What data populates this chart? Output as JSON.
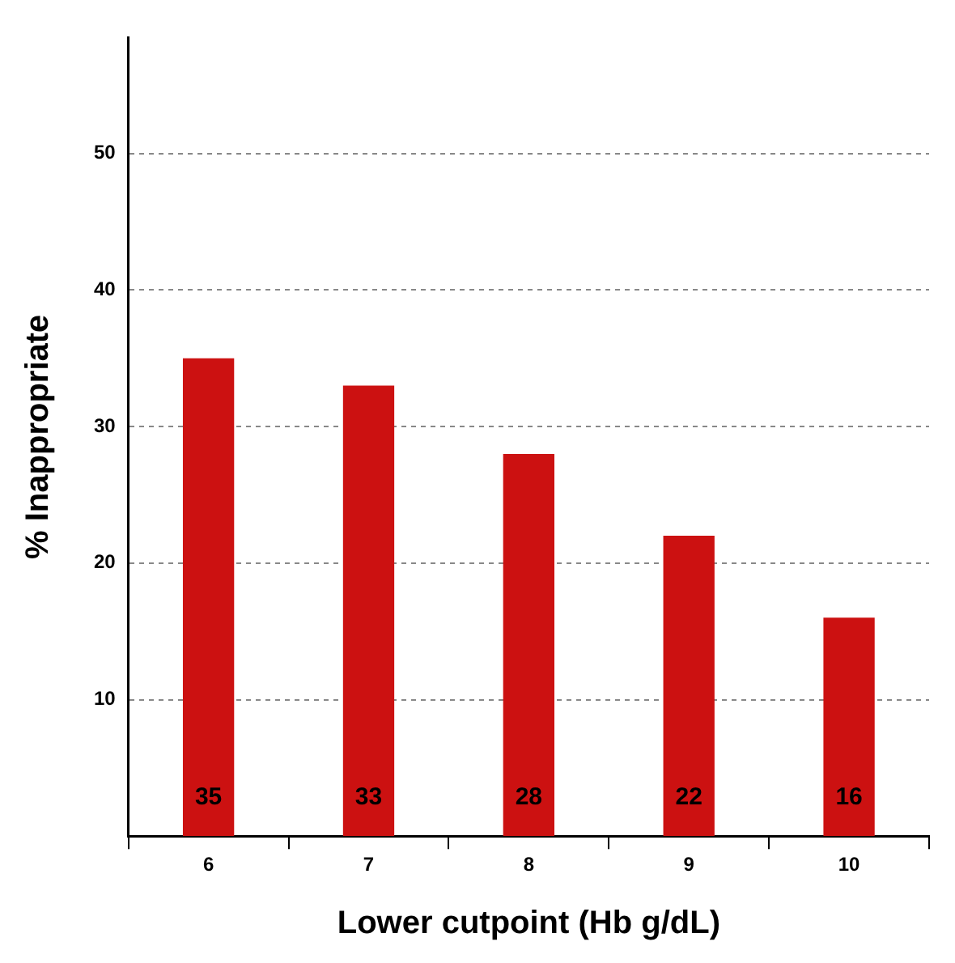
{
  "chart_data": {
    "type": "bar",
    "xlabel": "Lower cutpoint (Hb g/dL)",
    "ylabel": "% Inappropriate",
    "categories": [
      "6",
      "7",
      "8",
      "9",
      "10"
    ],
    "values": [
      35,
      33,
      28,
      22,
      16
    ],
    "color": "#cc1111",
    "ylim": [
      0,
      58.5
    ],
    "yticks": [
      10,
      20,
      30,
      40,
      50
    ],
    "grid": "y",
    "data_labels": true
  }
}
